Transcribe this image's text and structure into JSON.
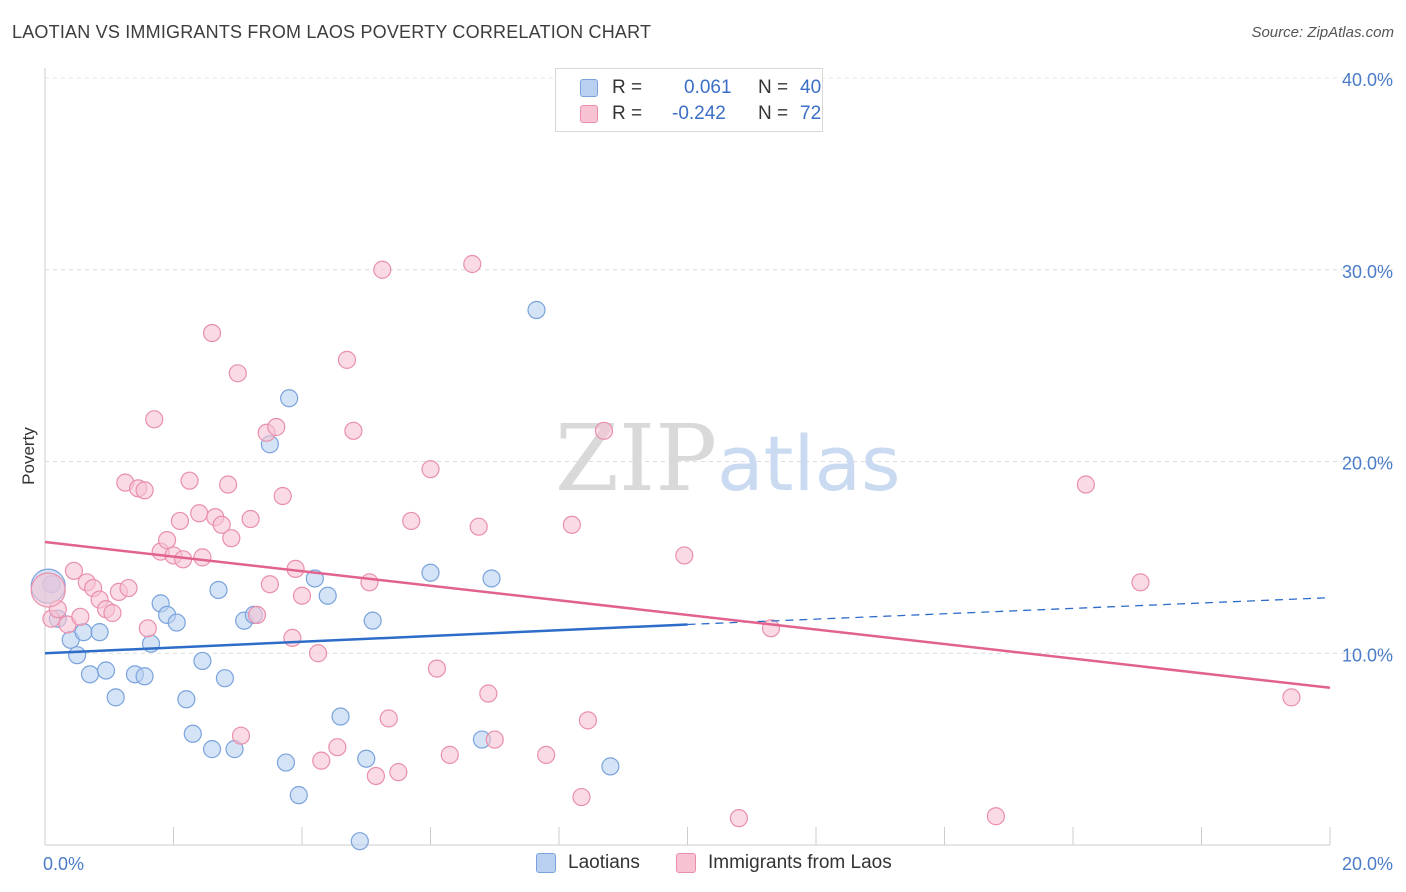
{
  "title": "LAOTIAN VS IMMIGRANTS FROM LAOS POVERTY CORRELATION CHART",
  "source": "Source: ZipAtlas.com",
  "watermark": {
    "zip": "ZIP",
    "atlas": "atlas"
  },
  "legend": {
    "rows": [
      {
        "r_label": "R =",
        "r_value": "0.061",
        "n_label": "N =",
        "n_value": "40"
      },
      {
        "r_label": "R =",
        "r_value": "-0.242",
        "n_label": "N =",
        "n_value": "72"
      }
    ]
  },
  "colors": {
    "laotians_fill": "#b9d0f0",
    "laotians_stroke": "#7aa3dd",
    "laotians_line": "#2d6cc9",
    "immigrants_fill": "#f7c3d3",
    "immigrants_stroke": "#e98fac",
    "immigrants_line": "#e2628f",
    "tick_text": "#4a7cc7"
  },
  "chart_data": {
    "type": "scatter",
    "title": "LAOTIAN VS IMMIGRANTS FROM LAOS POVERTY CORRELATION CHART",
    "xlabel": "",
    "ylabel": "Poverty",
    "xlim": [
      0,
      20
    ],
    "ylim": [
      0,
      40
    ],
    "x_tick_labels": [
      "0.0%",
      "20.0%"
    ],
    "y_tick_labels": [
      "10.0%",
      "20.0%",
      "30.0%",
      "40.0%"
    ],
    "y_ticks": [
      10,
      20,
      30,
      40
    ],
    "grid": "horizontal dashed",
    "legend_position": "top-center",
    "series": [
      {
        "name": "Laotians",
        "r": 0.061,
        "n": 40,
        "trend": {
          "x_start": 0,
          "y_start": 10.0,
          "x_solid_end": 10.0,
          "y_solid_end": 11.5,
          "x_end": 20,
          "y_end": 12.9
        },
        "points": [
          [
            0.1,
            13.6
          ],
          [
            0.2,
            11.8
          ],
          [
            0.4,
            10.7
          ],
          [
            0.5,
            9.9
          ],
          [
            0.6,
            11.1
          ],
          [
            0.7,
            8.9
          ],
          [
            0.85,
            11.1
          ],
          [
            0.95,
            9.1
          ],
          [
            1.1,
            7.7
          ],
          [
            1.4,
            8.9
          ],
          [
            1.55,
            8.8
          ],
          [
            1.65,
            10.5
          ],
          [
            1.8,
            12.6
          ],
          [
            1.9,
            12.0
          ],
          [
            2.05,
            11.6
          ],
          [
            2.2,
            7.6
          ],
          [
            2.3,
            5.8
          ],
          [
            2.45,
            9.6
          ],
          [
            2.6,
            5.0
          ],
          [
            2.7,
            13.3
          ],
          [
            2.8,
            8.7
          ],
          [
            2.95,
            5.0
          ],
          [
            3.1,
            11.7
          ],
          [
            3.25,
            12.0
          ],
          [
            3.5,
            20.9
          ],
          [
            3.75,
            4.3
          ],
          [
            3.8,
            23.3
          ],
          [
            3.95,
            2.6
          ],
          [
            4.2,
            13.9
          ],
          [
            4.4,
            13.0
          ],
          [
            4.6,
            6.7
          ],
          [
            4.9,
            0.2
          ],
          [
            5.0,
            4.5
          ],
          [
            5.1,
            11.7
          ],
          [
            6.0,
            14.2
          ],
          [
            6.8,
            5.5
          ],
          [
            6.95,
            13.9
          ],
          [
            7.65,
            27.9
          ],
          [
            8.8,
            4.1
          ],
          [
            0.05,
            13.5
          ]
        ]
      },
      {
        "name": "Immigrants from Laos",
        "r": -0.242,
        "n": 72,
        "trend": {
          "x_start": 0,
          "y_start": 15.8,
          "x_end": 20,
          "y_end": 8.2
        },
        "points": [
          [
            0.1,
            11.8
          ],
          [
            0.2,
            12.3
          ],
          [
            0.35,
            11.5
          ],
          [
            0.45,
            14.3
          ],
          [
            0.55,
            11.9
          ],
          [
            0.65,
            13.7
          ],
          [
            0.75,
            13.4
          ],
          [
            0.85,
            12.8
          ],
          [
            0.95,
            12.3
          ],
          [
            1.05,
            12.1
          ],
          [
            1.15,
            13.2
          ],
          [
            1.25,
            18.9
          ],
          [
            1.3,
            13.4
          ],
          [
            1.45,
            18.6
          ],
          [
            1.55,
            18.5
          ],
          [
            1.6,
            11.3
          ],
          [
            1.7,
            22.2
          ],
          [
            1.8,
            15.3
          ],
          [
            1.9,
            15.9
          ],
          [
            2.0,
            15.1
          ],
          [
            2.1,
            16.9
          ],
          [
            2.15,
            14.9
          ],
          [
            2.25,
            19.0
          ],
          [
            2.4,
            17.3
          ],
          [
            2.45,
            15.0
          ],
          [
            2.6,
            26.7
          ],
          [
            2.65,
            17.1
          ],
          [
            2.75,
            16.7
          ],
          [
            2.85,
            18.8
          ],
          [
            2.9,
            16.0
          ],
          [
            3.0,
            24.6
          ],
          [
            3.05,
            5.7
          ],
          [
            3.2,
            17.0
          ],
          [
            3.3,
            12.0
          ],
          [
            3.45,
            21.5
          ],
          [
            3.5,
            13.6
          ],
          [
            3.6,
            21.8
          ],
          [
            3.7,
            18.2
          ],
          [
            3.85,
            10.8
          ],
          [
            3.9,
            14.4
          ],
          [
            4.0,
            13.0
          ],
          [
            4.25,
            10.0
          ],
          [
            4.3,
            4.4
          ],
          [
            4.55,
            5.1
          ],
          [
            4.7,
            25.3
          ],
          [
            4.8,
            21.6
          ],
          [
            5.05,
            13.7
          ],
          [
            5.15,
            3.6
          ],
          [
            5.25,
            30.0
          ],
          [
            5.35,
            6.6
          ],
          [
            5.5,
            3.8
          ],
          [
            5.7,
            16.9
          ],
          [
            6.0,
            19.6
          ],
          [
            6.1,
            9.2
          ],
          [
            6.3,
            4.7
          ],
          [
            6.65,
            30.3
          ],
          [
            6.75,
            16.6
          ],
          [
            6.9,
            7.9
          ],
          [
            7.0,
            5.5
          ],
          [
            7.8,
            4.7
          ],
          [
            8.2,
            16.7
          ],
          [
            8.35,
            2.5
          ],
          [
            8.45,
            6.5
          ],
          [
            8.7,
            21.6
          ],
          [
            9.95,
            15.1
          ],
          [
            10.8,
            1.4
          ],
          [
            11.3,
            11.3
          ],
          [
            14.8,
            1.5
          ],
          [
            16.2,
            18.8
          ],
          [
            17.05,
            13.7
          ],
          [
            19.4,
            7.7
          ],
          [
            0.05,
            13.3
          ]
        ]
      }
    ]
  },
  "bottom_legend": [
    "Laotians",
    "Immigrants from Laos"
  ]
}
